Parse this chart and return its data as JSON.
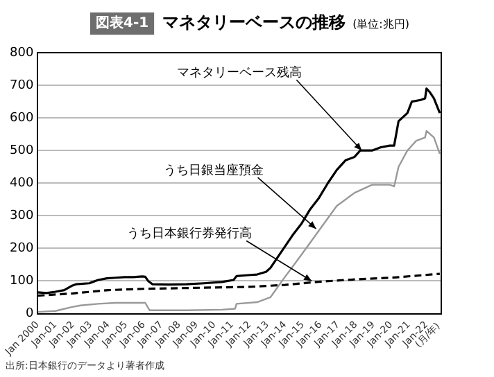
{
  "chart_data": {
    "type": "line",
    "title": "マネタリーベースの推移",
    "subtitle": "(単位:兆円)",
    "xlabel": "(月/年)",
    "xlim": [
      "2000-01",
      "2022-11"
    ],
    "xticks": [
      {
        "value": "2000-01",
        "label": "Jan 2000"
      },
      {
        "value": "2001-01",
        "label": "Jan-01"
      },
      {
        "value": "2002-01",
        "label": "Jan-02"
      },
      {
        "value": "2003-01",
        "label": "Jan-03"
      },
      {
        "value": "2004-01",
        "label": "Jan-04"
      },
      {
        "value": "2005-01",
        "label": "Jan-05"
      },
      {
        "value": "2006-01",
        "label": "Jan-06"
      },
      {
        "value": "2007-01",
        "label": "Jan-07"
      },
      {
        "value": "2008-01",
        "label": "Jan-08"
      },
      {
        "value": "2009-01",
        "label": "Jan-09"
      },
      {
        "value": "2010-01",
        "label": "Jan-10"
      },
      {
        "value": "2011-01",
        "label": "Jan-11"
      },
      {
        "value": "2012-01",
        "label": "Jan-12"
      },
      {
        "value": "2013-01",
        "label": "Jan-13"
      },
      {
        "value": "2014-01",
        "label": "Jan-14"
      },
      {
        "value": "2015-01",
        "label": "Jan-15"
      },
      {
        "value": "2016-01",
        "label": "Jan-16"
      },
      {
        "value": "2017-01",
        "label": "Jan-17"
      },
      {
        "value": "2018-01",
        "label": "Jan-18"
      },
      {
        "value": "2019-01",
        "label": "Jan-19"
      },
      {
        "value": "2020-01",
        "label": "Jan-20"
      },
      {
        "value": "2021-01",
        "label": "Jan-21"
      },
      {
        "value": "2022-01",
        "label": "Jan-22"
      }
    ],
    "ylim": [
      0,
      800
    ],
    "yticks": [
      0,
      100,
      200,
      300,
      400,
      500,
      600,
      700,
      800
    ],
    "grid": "y",
    "legend": false,
    "marker": "none",
    "series": [
      {
        "color": "#000000",
        "line_style": "solid",
        "x": [
          "2000-01",
          "2000-07",
          "2001-01",
          "2001-07",
          "2001-12",
          "2002-03",
          "2002-12",
          "2003-06",
          "2003-12",
          "2004-06",
          "2004-12",
          "2005-06",
          "2005-12",
          "2006-02",
          "2006-04",
          "2006-07",
          "2007-06",
          "2008-06",
          "2009-06",
          "2010-06",
          "2011-02",
          "2011-04",
          "2011-12",
          "2012-06",
          "2012-12",
          "2013-03",
          "2013-12",
          "2014-06",
          "2014-12",
          "2015-06",
          "2015-12",
          "2016-06",
          "2016-12",
          "2017-06",
          "2017-12",
          "2018-04",
          "2018-12",
          "2019-06",
          "2019-12",
          "2020-03",
          "2020-06",
          "2020-12",
          "2021-03",
          "2021-09",
          "2021-12",
          "2022-01",
          "2022-03",
          "2022-06",
          "2022-10"
        ],
        "values": [
          65,
          63,
          67,
          72,
          85,
          90,
          93,
          103,
          108,
          110,
          112,
          112,
          114,
          113,
          100,
          90,
          89,
          90,
          93,
          97,
          103,
          115,
          118,
          120,
          128,
          140,
          200,
          240,
          275,
          320,
          355,
          400,
          440,
          470,
          480,
          500,
          500,
          510,
          515,
          515,
          590,
          615,
          650,
          655,
          660,
          690,
          680,
          660,
          615
        ]
      },
      {
        "color": "#999999",
        "line_style": "solid",
        "x": [
          "2000-01",
          "2001-01",
          "2001-12",
          "2002-06",
          "2003-06",
          "2004-06",
          "2006-02",
          "2006-05",
          "2008-06",
          "2010-06",
          "2011-03",
          "2011-04",
          "2012-06",
          "2013-03",
          "2013-12",
          "2014-12",
          "2015-12",
          "2016-12",
          "2017-12",
          "2018-12",
          "2019-12",
          "2020-03",
          "2020-06",
          "2020-12",
          "2021-06",
          "2021-12",
          "2022-01",
          "2022-06",
          "2022-10"
        ],
        "values": [
          5,
          8,
          20,
          25,
          30,
          33,
          33,
          10,
          10,
          12,
          15,
          30,
          35,
          50,
          107,
          180,
          255,
          330,
          370,
          395,
          395,
          390,
          450,
          500,
          530,
          540,
          560,
          540,
          490
        ]
      },
      {
        "color": "#000000",
        "line_style": "dashed",
        "x": [
          "2000-01",
          "2002-01",
          "2004-01",
          "2006-01",
          "2008-01",
          "2010-01",
          "2012-01",
          "2014-01",
          "2016-01",
          "2018-01",
          "2020-01",
          "2022-10"
        ],
        "values": [
          55,
          62,
          72,
          76,
          78,
          80,
          82,
          88,
          98,
          105,
          110,
          122
        ]
      }
    ],
    "annotations": [
      "図表4-1",
      {
        "text": "マネタリーベース残高",
        "x": "2018-05",
        "y": 500
      },
      {
        "text": "うち日銀当座預金",
        "x": "2015-10",
        "y": 260
      },
      {
        "text": "うち日本銀行券発行高",
        "x": "2015-07",
        "y": 100
      },
      "出所:日本銀行のデータより著者作成"
    ]
  }
}
